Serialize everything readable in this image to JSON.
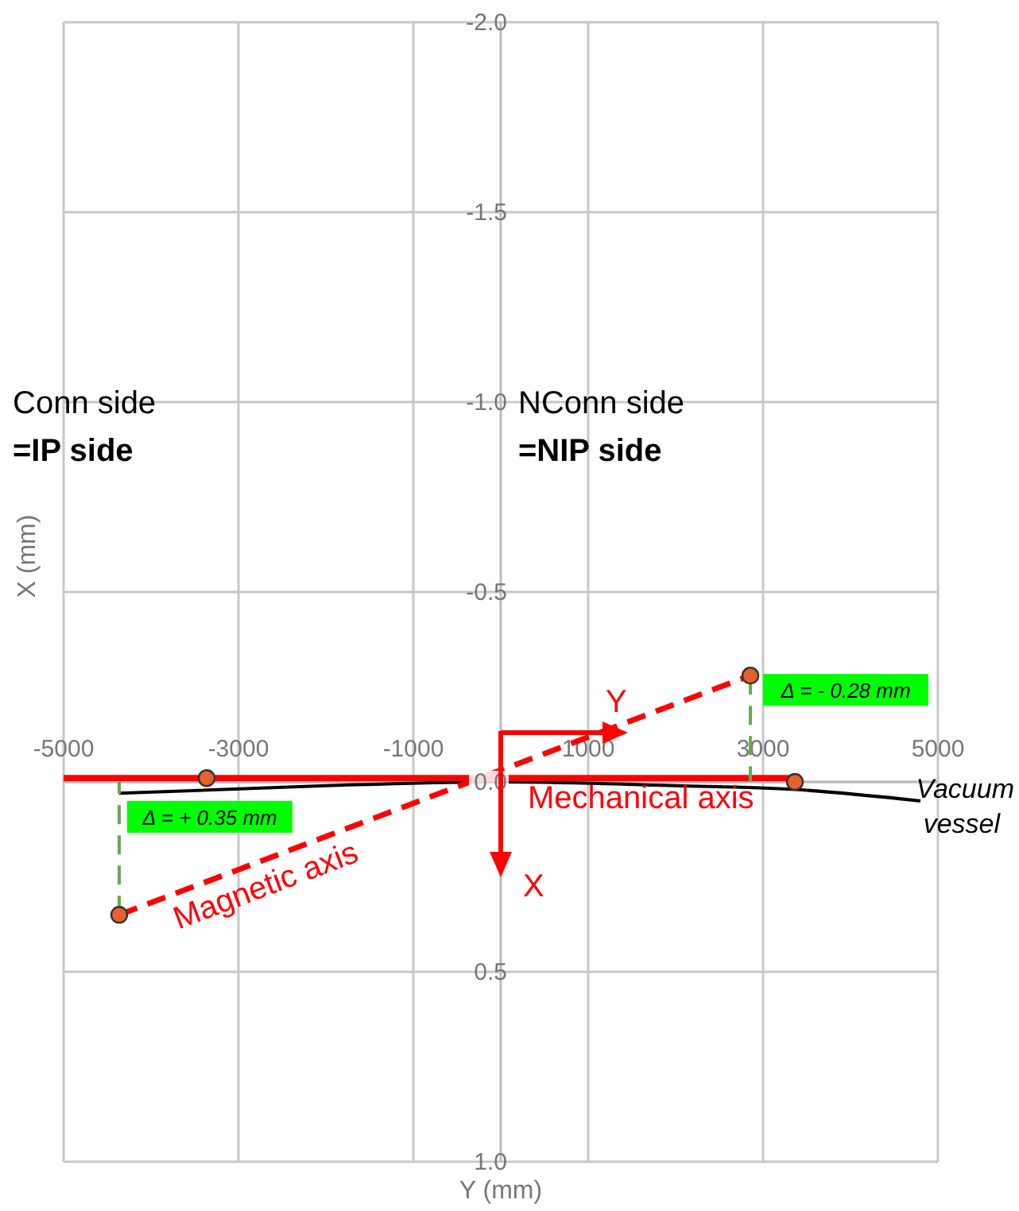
{
  "chart_data": {
    "type": "line",
    "xlabel": "Y (mm)",
    "ylabel": "X (mm)",
    "xlim": [
      -5000,
      5000
    ],
    "xticks": [
      -5000,
      -3000,
      -1000,
      1000,
      3000,
      5000
    ],
    "ylim": [
      1,
      -2
    ],
    "yticks": [
      {
        "value": -2,
        "label": "-2.0"
      },
      {
        "value": -1.5,
        "label": "-1.5"
      },
      {
        "value": -1,
        "label": "-1.0"
      },
      {
        "value": -0.5,
        "label": "-0.5"
      },
      {
        "value": 0,
        "label": "0.0"
      },
      {
        "value": 0.5,
        "label": "0.5"
      },
      {
        "value": 1,
        "label": "1.0"
      }
    ],
    "grid": true,
    "series": [
      {
        "name": "Vacuum vessel",
        "color": "#000000",
        "x": [
          -4364,
          -2000,
          0,
          2000,
          3364,
          4800
        ],
        "values": [
          0.03,
          0.01,
          0,
          0.01,
          0.02,
          0.05
        ],
        "line_style": "solid",
        "marker": "none"
      },
      {
        "name": "Mechanical axis",
        "color": "#ff0000",
        "x": [
          -5000,
          3364
        ],
        "values": [
          -0.01,
          -0.01
        ],
        "line_style": "solid",
        "marker": "none"
      },
      {
        "name": "Magnetic axis",
        "color": "#ff0000",
        "x": [
          -4364,
          2855
        ],
        "values": [
          0.35,
          -0.28
        ],
        "line_style": "dashed",
        "marker": "none"
      },
      {
        "color": "#6aa84f",
        "x": [
          -4364,
          -4364
        ],
        "values": [
          0.35,
          0
        ],
        "line_style": "dashed",
        "marker": "none"
      },
      {
        "color": "#6aa84f",
        "x": [
          2855,
          2855
        ],
        "values": [
          -0.28,
          0
        ],
        "line_style": "dashed",
        "marker": "none"
      },
      {
        "type": "scatter",
        "color": "#e8602c",
        "x": [
          -4364,
          -3364,
          2855,
          3364
        ],
        "values": [
          0.35,
          -0.01,
          -0.28,
          0
        ],
        "marker": "circle"
      }
    ],
    "annotations": [
      "Conn side",
      "=IP side",
      "NConn side",
      "=NIP side",
      {
        "text": "Δ = + 0.35 mm",
        "x": -4364,
        "y": 0
      },
      {
        "text": "Δ = - 0.28 mm",
        "x": 2855,
        "y": -0.28
      },
      "Y",
      "X"
    ]
  }
}
